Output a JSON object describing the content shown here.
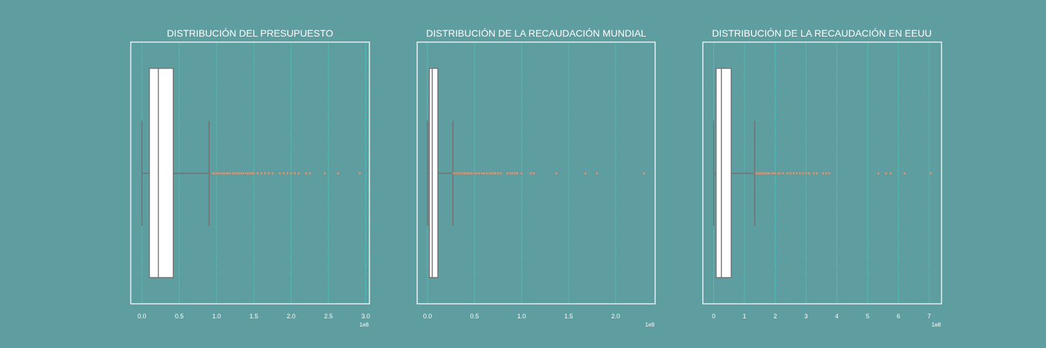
{
  "colors": {
    "background": "#5f9ea0",
    "box_fill": "#ffffff",
    "whisker": "#707070",
    "grid": "#40e0d0",
    "frame": "#ffffff",
    "text": "#ffffff",
    "outlier": "#c0a080"
  },
  "chart_data": [
    {
      "type": "box",
      "title": "DISTRIBUCIÓN DEL PRESUPUESTO",
      "xlabel": "",
      "ylabel": "",
      "orientation": "horizontal",
      "scale_factor": "1e8",
      "xlim": [
        -0.15,
        3.05
      ],
      "ticks": [
        0.0,
        0.5,
        1.0,
        1.5,
        2.0,
        2.5,
        3.0
      ],
      "tick_labels": [
        "0.0",
        "0.5",
        "1.0",
        "1.5",
        "2.0",
        "2.5",
        "3.0"
      ],
      "grid": true,
      "box": {
        "whisker_low": 0.0,
        "q1": 0.1,
        "median": 0.22,
        "q3": 0.42,
        "whisker_high": 0.9
      },
      "outliers": [
        0.95,
        0.97,
        1.0,
        1.02,
        1.05,
        1.08,
        1.1,
        1.13,
        1.15,
        1.18,
        1.22,
        1.25,
        1.28,
        1.3,
        1.33,
        1.36,
        1.4,
        1.42,
        1.45,
        1.48,
        1.5,
        1.55,
        1.6,
        1.65,
        1.7,
        1.75,
        1.85,
        1.9,
        1.95,
        2.0,
        2.05,
        2.1,
        2.2,
        2.25,
        2.45,
        2.63,
        2.92
      ]
    },
    {
      "type": "box",
      "title": "DISTRIBUCIÓN DE LA RECAUDACIÓN MUNDIAL",
      "xlabel": "",
      "ylabel": "",
      "orientation": "horizontal",
      "scale_factor": "1e9",
      "xlim": [
        -0.11,
        2.42
      ],
      "ticks": [
        0.0,
        0.5,
        1.0,
        1.5,
        2.0
      ],
      "tick_labels": [
        "0.0",
        "0.5",
        "1.0",
        "1.5",
        "2.0"
      ],
      "grid": true,
      "box": {
        "whisker_low": 0.0,
        "q1": 0.02,
        "median": 0.05,
        "q3": 0.11,
        "whisker_high": 0.27
      },
      "outliers": [
        0.28,
        0.29,
        0.3,
        0.31,
        0.32,
        0.33,
        0.34,
        0.35,
        0.36,
        0.37,
        0.38,
        0.39,
        0.4,
        0.42,
        0.43,
        0.45,
        0.47,
        0.5,
        0.52,
        0.55,
        0.58,
        0.6,
        0.63,
        0.66,
        0.68,
        0.7,
        0.72,
        0.75,
        0.78,
        0.85,
        0.88,
        0.9,
        0.93,
        0.95,
        1.0,
        1.1,
        1.13,
        1.37,
        1.68,
        1.8,
        2.3
      ]
    },
    {
      "type": "box",
      "title": "DISTRIBUCIÓN DE LA RECAUDACIÓN EN EEUU",
      "xlabel": "",
      "ylabel": "",
      "orientation": "horizontal",
      "scale_factor": "1e8",
      "xlim": [
        -0.35,
        7.4
      ],
      "ticks": [
        0,
        1,
        2,
        3,
        4,
        5,
        6,
        7
      ],
      "tick_labels": [
        "0",
        "1",
        "2",
        "3",
        "4",
        "5",
        "6",
        "7"
      ],
      "grid": true,
      "box": {
        "whisker_low": 0.0,
        "q1": 0.08,
        "median": 0.25,
        "q3": 0.57,
        "whisker_high": 1.33
      },
      "outliers": [
        1.38,
        1.42,
        1.46,
        1.5,
        1.55,
        1.6,
        1.65,
        1.7,
        1.75,
        1.8,
        1.9,
        1.95,
        2.0,
        2.1,
        2.15,
        2.25,
        2.4,
        2.5,
        2.6,
        2.7,
        2.8,
        2.9,
        3.0,
        3.1,
        3.25,
        3.35,
        3.55,
        3.65,
        3.75,
        5.35,
        5.6,
        5.75,
        6.2,
        7.05
      ]
    }
  ]
}
